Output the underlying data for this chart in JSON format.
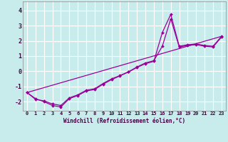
{
  "xlabel": "Windchill (Refroidissement éolien,°C)",
  "xlim": [
    -0.5,
    23.5
  ],
  "ylim": [
    -2.6,
    4.6
  ],
  "yticks": [
    -2,
    -1,
    0,
    1,
    2,
    3,
    4
  ],
  "xticks": [
    0,
    1,
    2,
    3,
    4,
    5,
    6,
    7,
    8,
    9,
    10,
    11,
    12,
    13,
    14,
    15,
    16,
    17,
    18,
    19,
    20,
    21,
    22,
    23
  ],
  "bg_color": "#c8ecec",
  "grid_color": "#ffffff",
  "line_color": "#990099",
  "line1_x": [
    0,
    1,
    2,
    3,
    4,
    5,
    6,
    7,
    8,
    9,
    10,
    11,
    12,
    13,
    14,
    15,
    16,
    17,
    18,
    19,
    20,
    21,
    22,
    23
  ],
  "line1_y": [
    -1.4,
    -1.8,
    -2.0,
    -2.25,
    -2.35,
    -1.8,
    -1.6,
    -1.3,
    -1.2,
    -0.85,
    -0.55,
    -0.3,
    -0.05,
    0.25,
    0.5,
    0.65,
    2.55,
    3.75,
    1.65,
    1.75,
    1.8,
    1.7,
    1.65,
    2.3
  ],
  "line2_x": [
    0,
    1,
    2,
    3,
    4,
    5,
    6,
    7,
    8,
    9,
    10,
    11,
    12,
    13,
    14,
    15,
    16,
    17,
    18,
    19,
    20,
    21,
    22,
    23
  ],
  "line2_y": [
    -1.4,
    -1.85,
    -1.95,
    -2.15,
    -2.25,
    -1.75,
    -1.55,
    -1.25,
    -1.15,
    -0.8,
    -0.5,
    -0.28,
    -0.03,
    0.28,
    0.55,
    0.7,
    1.65,
    3.45,
    1.6,
    1.7,
    1.75,
    1.65,
    1.6,
    2.25
  ],
  "line3_x": [
    0,
    23
  ],
  "line3_y": [
    -1.4,
    2.3
  ]
}
